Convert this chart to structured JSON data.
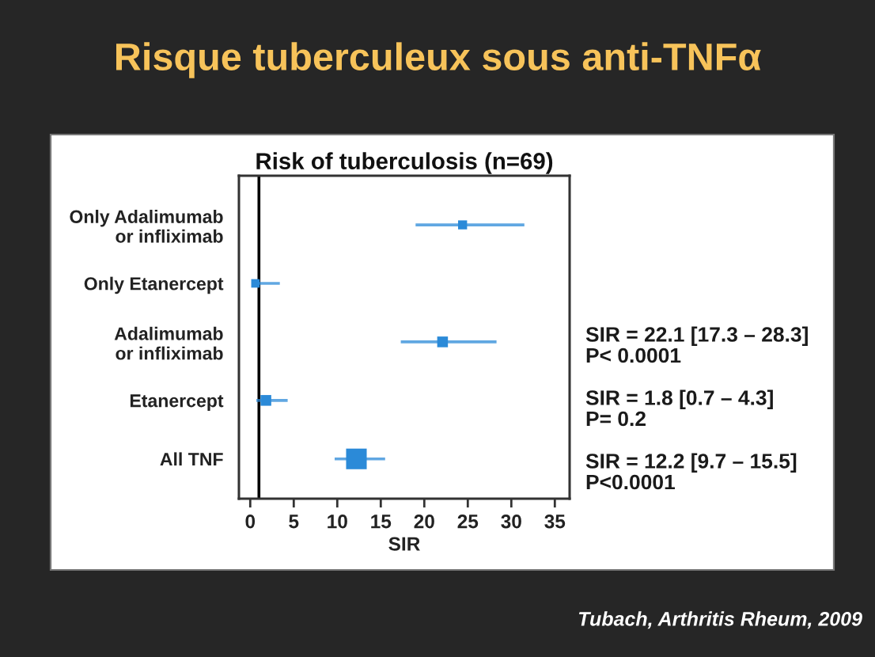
{
  "chart_data": {
    "type": "bubble",
    "orientation": "horizontal",
    "title": "Risque tuberculeux sous anti-TNFα",
    "subtitle": "Risk of tuberculosis (n=69)",
    "xlabel": "SIR",
    "categories": [
      "Only Adalimumab\nor infliximab",
      "Only Etanercept",
      "Adalimumab\nor infliximab",
      "Etanercept",
      "All TNF"
    ],
    "values": [
      24.4,
      0.6,
      22.1,
      1.8,
      12.2
    ],
    "errors": [
      [
        19.0,
        31.5
      ],
      [
        0.3,
        3.4
      ],
      [
        17.3,
        28.3
      ],
      [
        0.7,
        4.3
      ],
      [
        9.7,
        15.5
      ]
    ],
    "sizes": [
      0.19,
      0.17,
      0.27,
      0.27,
      1
    ],
    "color": "#2b8ad8",
    "marker": "square",
    "xlim": [
      -1.3,
      36.7
    ],
    "xticks": [
      0,
      5,
      10,
      15,
      20,
      25,
      30,
      35
    ],
    "ref_lines": [
      {
        "axis": "x",
        "value": 1,
        "color": "#000000"
      }
    ],
    "annotations": [
      "SIR = 22.1 [17.3 – 28.3]\nP< 0.0001",
      "SIR = 1.8 [0.7 – 4.3]\nP= 0.2",
      "SIR = 12.2 [9.7 – 15.5]\nP<0.0001",
      "Tubach, Arthritis Rheum, 2009"
    ]
  }
}
